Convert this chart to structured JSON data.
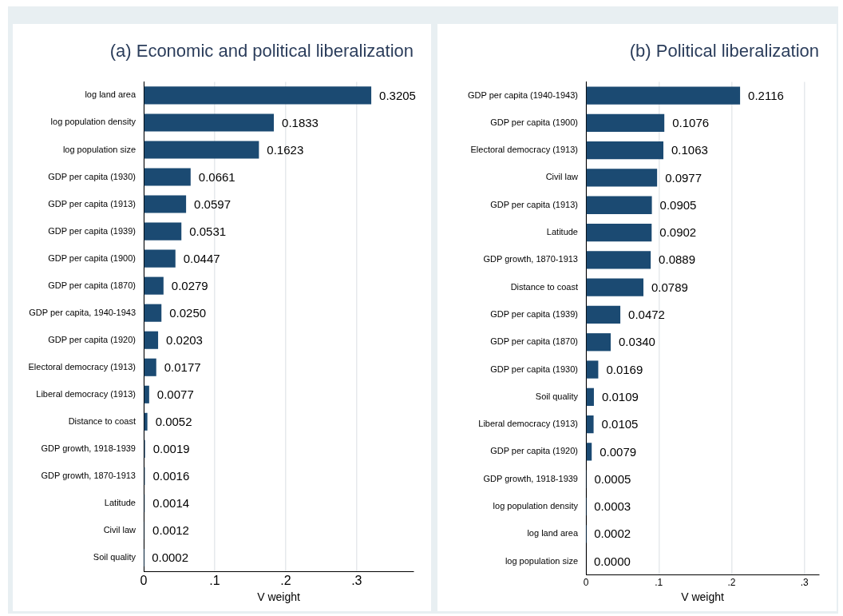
{
  "chart_data": [
    {
      "type": "bar",
      "orientation": "horizontal",
      "title": "(a) Economic and political liberalization",
      "xlabel": "V weight",
      "color": "#1b4a72",
      "grid": "x",
      "xlim": [
        0,
        0.38
      ],
      "xticks": [
        {
          "value": 0,
          "label": "0"
        },
        {
          "value": 0.1,
          "label": ".1"
        },
        {
          "value": 0.2,
          "label": ".2"
        },
        {
          "value": 0.3,
          "label": ".3"
        }
      ],
      "categories": [
        "log land area",
        "log population density",
        "log population size",
        "GDP per capita (1930)",
        "GDP per capita (1913)",
        "GDP per capita (1939)",
        "GDP per capita (1900)",
        "GDP per capita (1870)",
        "GDP per capita, 1940-1943",
        "GDP per capita (1920)",
        "Electoral democracy (1913)",
        "Liberal democracy (1913)",
        "Distance to coast",
        "GDP growth, 1918-1939",
        "GDP growth, 1870-1913",
        "Latitude",
        "Civil law",
        "Soil quality"
      ],
      "values": [
        0.3205,
        0.1833,
        0.1623,
        0.0661,
        0.0597,
        0.0531,
        0.0447,
        0.0279,
        0.025,
        0.0203,
        0.0177,
        0.0077,
        0.0052,
        0.0019,
        0.0016,
        0.0014,
        0.0012,
        0.0002
      ],
      "value_labels": [
        "0.3205",
        "0.1833",
        "0.1623",
        "0.0661",
        "0.0597",
        "0.0531",
        "0.0447",
        "0.0279",
        "0.0250",
        "0.0203",
        "0.0177",
        "0.0077",
        "0.0052",
        "0.0019",
        "0.0016",
        "0.0014",
        "0.0012",
        "0.0002"
      ]
    },
    {
      "type": "bar",
      "orientation": "horizontal",
      "title": "(b) Political liberalization",
      "xlabel": "V weight",
      "color": "#1b4a72",
      "grid": "x",
      "xlim": [
        0,
        0.32
      ],
      "xticks": [
        {
          "value": 0,
          "label": "0"
        },
        {
          "value": 0.1,
          "label": ".1"
        },
        {
          "value": 0.2,
          "label": ".2"
        },
        {
          "value": 0.3,
          "label": ".3"
        }
      ],
      "categories": [
        "GDP per capita (1940-1943)",
        "GDP per capita (1900)",
        "Electoral democracy (1913)",
        "Civil law",
        "GDP per capita (1913)",
        "Latitude",
        "GDP growth, 1870-1913",
        "Distance to coast",
        "GDP per capita (1939)",
        "GDP per capita (1870)",
        "GDP per capita (1930)",
        "Soil quality",
        "Liberal democracy (1913)",
        "GDP per capita (1920)",
        "GDP growth, 1918-1939",
        "log population density",
        "log land area",
        "log population size"
      ],
      "values": [
        0.2116,
        0.1076,
        0.1063,
        0.0977,
        0.0905,
        0.0902,
        0.0889,
        0.0789,
        0.0472,
        0.034,
        0.0169,
        0.0109,
        0.0105,
        0.0079,
        0.0005,
        0.0003,
        0.0002,
        0.0
      ],
      "value_labels": [
        "0.2116",
        "0.1076",
        "0.1063",
        "0.0977",
        "0.0905",
        "0.0902",
        "0.0889",
        "0.0789",
        "0.0472",
        "0.0340",
        "0.0169",
        "0.0109",
        "0.0105",
        "0.0079",
        "0.0005",
        "0.0003",
        "0.0002",
        "0.0000"
      ]
    }
  ]
}
